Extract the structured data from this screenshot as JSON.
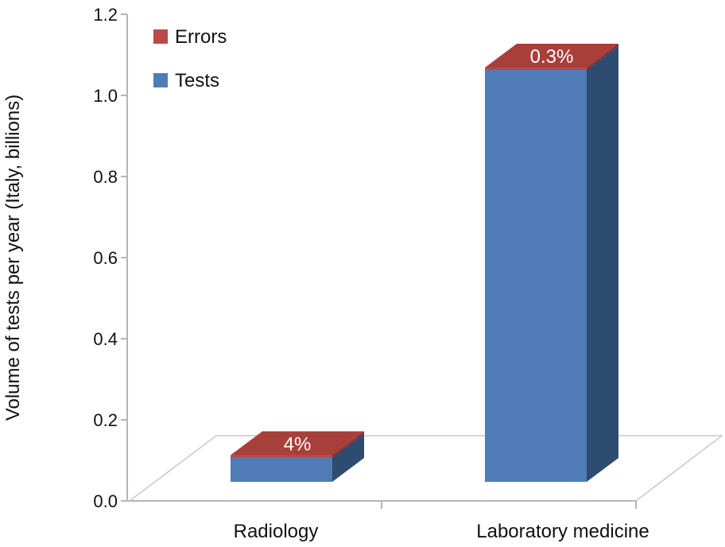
{
  "chart_data": {
    "type": "bar",
    "title": "",
    "xlabel": "",
    "ylabel": "Volume of tests per year (Italy, billions)",
    "ylim": [
      0,
      1.2
    ],
    "yticks": [
      "0.0",
      "0.2",
      "0.4",
      "0.6",
      "0.8",
      "1.0",
      "1.2"
    ],
    "categories": [
      "Radiology",
      "Laboratory medicine"
    ],
    "series": [
      {
        "name": "Tests",
        "values": [
          0.06,
          1.02
        ]
      },
      {
        "name": "Errors",
        "values": [
          0.003,
          0.003
        ]
      }
    ],
    "data_labels": [
      "4%",
      "0.3%"
    ],
    "legend": [
      {
        "name": "Errors",
        "color": "#B94A48"
      },
      {
        "name": "Tests",
        "color": "#4F7CB6"
      }
    ],
    "legend_position": "top-left",
    "grid": false,
    "style": "3d"
  }
}
